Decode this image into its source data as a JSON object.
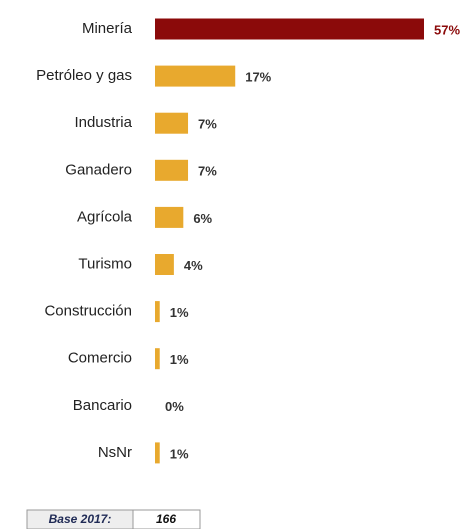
{
  "chart_data": {
    "type": "barh",
    "categories": [
      "Minería",
      "Petróleo y gas",
      "Industria",
      "Ganadero",
      "Agrícola",
      "Turismo",
      "Construcción",
      "Comercio",
      "Bancario",
      "NsNr"
    ],
    "values": [
      57,
      17,
      7,
      7,
      6,
      4,
      1,
      1,
      0,
      1
    ],
    "value_labels": [
      "57%",
      "17%",
      "7%",
      "7%",
      "6%",
      "4%",
      "1%",
      "1%",
      "0%",
      "1%"
    ],
    "colors": [
      "#8b0a0a",
      "#e8a92e",
      "#e8a92e",
      "#e8a92e",
      "#e8a92e",
      "#e8a92e",
      "#e8a92e",
      "#e8a92e",
      "#e8a92e",
      "#e8a92e"
    ],
    "label_colors": [
      "#8b0a0a",
      "#333333",
      "#333333",
      "#333333",
      "#333333",
      "#333333",
      "#333333",
      "#333333",
      "#333333",
      "#333333"
    ]
  },
  "footer": {
    "label": "Base 2017:",
    "value": "166"
  }
}
